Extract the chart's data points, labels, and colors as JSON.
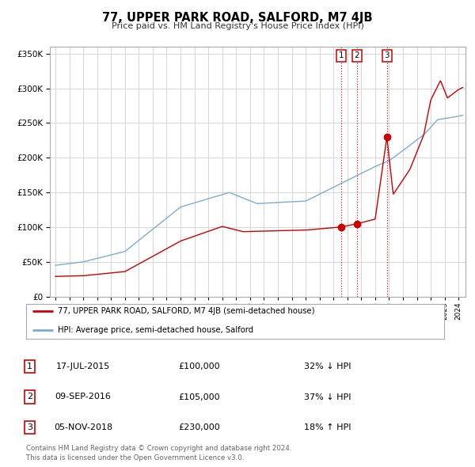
{
  "title": "77, UPPER PARK ROAD, SALFORD, M7 4JB",
  "subtitle": "Price paid vs. HM Land Registry's House Price Index (HPI)",
  "legend_property": "77, UPPER PARK ROAD, SALFORD, M7 4JB (semi-detached house)",
  "legend_hpi": "HPI: Average price, semi-detached house, Salford",
  "property_color": "#cc0000",
  "hpi_color": "#7aadd4",
  "transaction_color": "#cc0000",
  "transactions": [
    {
      "label": "1",
      "date": 2015.54,
      "price": 100000,
      "note": "32% ↓ HPI",
      "display_date": "17-JUL-2015"
    },
    {
      "label": "2",
      "date": 2016.69,
      "price": 105000,
      "note": "37% ↓ HPI",
      "display_date": "09-SEP-2016"
    },
    {
      "label": "3",
      "date": 2018.84,
      "price": 230000,
      "note": "18% ↑ HPI",
      "display_date": "05-NOV-2018"
    }
  ],
  "footnote1": "Contains HM Land Registry data © Crown copyright and database right 2024.",
  "footnote2": "This data is licensed under the Open Government Licence v3.0.",
  "ylim": [
    0,
    360000
  ],
  "xlim_start": 1994.6,
  "xlim_end": 2024.5,
  "plot_bg_color": "#ffffff"
}
